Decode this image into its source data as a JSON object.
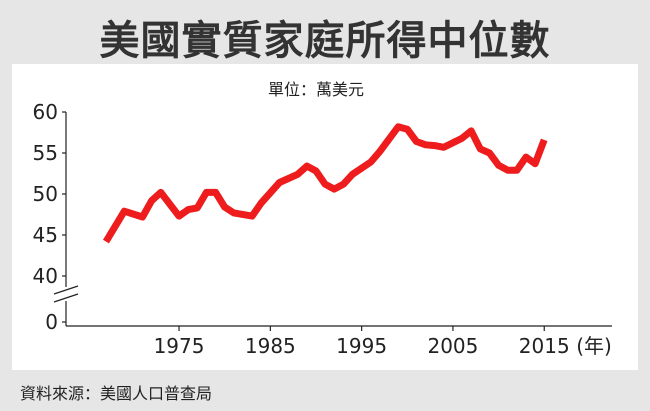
{
  "title": "美國實質家庭所得中位數",
  "source": "資料來源：美國人口普查局",
  "chart_data": {
    "type": "line",
    "unit_label": "單位：萬美元",
    "x_unit": "(年)",
    "x_ticks": [
      1975,
      1985,
      1995,
      2005,
      2015
    ],
    "y_ticks": [
      60,
      55,
      50,
      45,
      40,
      0
    ],
    "y_axis_break": "40-0",
    "line_color": "#ee1c1c",
    "x": [
      1967,
      1969,
      1971,
      1972,
      1973,
      1975,
      1976,
      1977,
      1978,
      1979,
      1980,
      1981,
      1983,
      1984,
      1986,
      1988,
      1989,
      1990,
      1991,
      1992,
      1993,
      1994,
      1996,
      1997,
      1999,
      2000,
      2001,
      2002,
      2003,
      2004,
      2006,
      2007,
      2008,
      2009,
      2010,
      2011,
      2012,
      2013,
      2014,
      2015
    ],
    "y": [
      44.2,
      47.9,
      47.2,
      49.2,
      50.2,
      47.3,
      48.1,
      48.3,
      50.2,
      50.2,
      48.4,
      47.7,
      47.3,
      48.9,
      51.4,
      52.4,
      53.4,
      52.8,
      51.2,
      50.6,
      51.2,
      52.4,
      53.9,
      55.2,
      58.2,
      57.9,
      56.4,
      56.0,
      55.9,
      55.7,
      56.8,
      57.7,
      55.5,
      55.0,
      53.5,
      52.9,
      52.9,
      54.5,
      53.7,
      56.6
    ]
  }
}
